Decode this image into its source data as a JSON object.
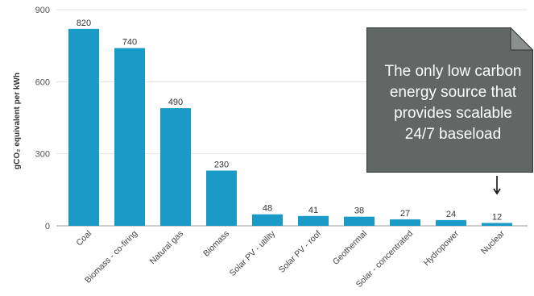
{
  "chart_data": {
    "type": "bar",
    "categories": [
      "Coal",
      "Biomass - co-firing",
      "Natural gas",
      "Biomass",
      "Solar PV - utility",
      "Solar PV - roof",
      "Geothermal",
      "Solar - concentrated",
      "Hydropower",
      "Nuclear"
    ],
    "values": [
      820,
      740,
      490,
      230,
      48,
      41,
      38,
      27,
      24,
      12
    ],
    "ylabel": "gCO₂ equivalent per kWh",
    "yticks": [
      0,
      300,
      600,
      900
    ],
    "ylim": [
      0,
      900
    ],
    "grid": true,
    "bar_color": "#1a9bc7",
    "annotation": {
      "text": "The only low carbon energy source that provides scalable 24/7 baseload",
      "target_category": "Nuclear"
    }
  }
}
